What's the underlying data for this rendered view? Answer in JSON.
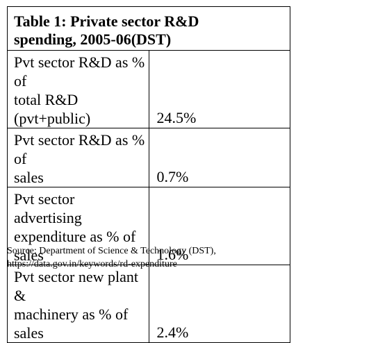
{
  "table": {
    "title_line1": "Table 1: Private sector R&D",
    "title_line2": "spending, 2005-06(DST)",
    "rows": [
      {
        "label_line1": "Pvt sector R&D as % of",
        "label_line2": "total R&D (pvt+public)",
        "value": "24.5%"
      },
      {
        "label_line1": "Pvt sector R&D as % of",
        "label_line2": "sales",
        "value": "0.7%"
      },
      {
        "label_line1": "Pvt sector advertising",
        "label_line2": "expenditure as % of sales",
        "value": "1.6%"
      },
      {
        "label_line1": "Pvt sector new plant &",
        "label_line2": "machinery as % of sales",
        "value": "2.4%"
      }
    ]
  },
  "source": {
    "line1": "Source: Department of Science & Technology (DST),",
    "line2": "https://data.gov.in/keywords/rd-expenditure"
  }
}
